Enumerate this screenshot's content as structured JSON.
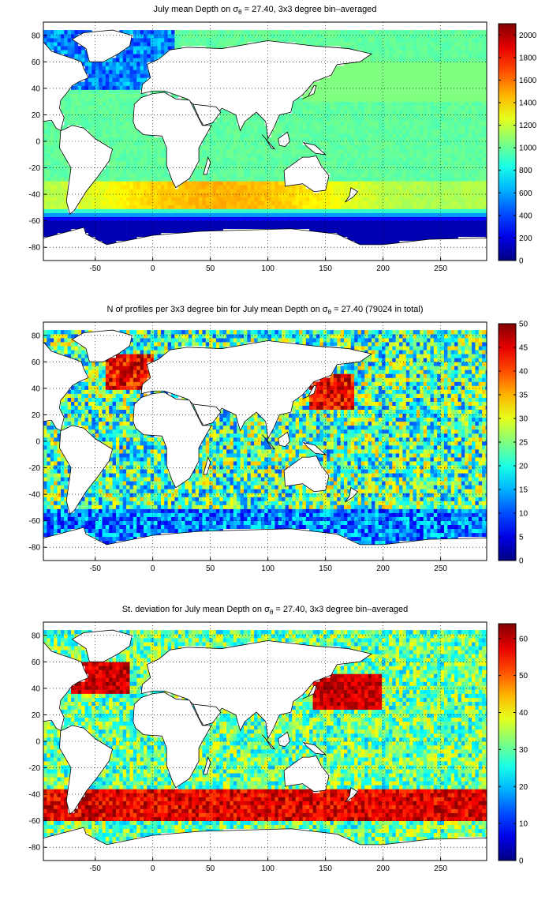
{
  "colors": {
    "land": "#ffffff",
    "coast": "#000000",
    "grid": "#000000",
    "colormap": "jet"
  },
  "panels": [
    {
      "title_prefix": "July mean Depth on ",
      "title_symbol": "σ",
      "title_subscript": "θ",
      "title_suffix": " = 27.40, 3x3 degree bin–averaged",
      "chart_data": {
        "type": "heatmap",
        "xticks": [
          "-50",
          "0",
          "50",
          "100",
          "150",
          "200",
          "250"
        ],
        "yticks": [
          "80",
          "60",
          "40",
          "20",
          "0",
          "-20",
          "-40",
          "-60",
          "-80"
        ],
        "colorbar_ticks": [
          "2000",
          "1800",
          "1600",
          "1400",
          "1200",
          "1000",
          "800",
          "600",
          "400",
          "200",
          "0"
        ],
        "colorbar_range": [
          0,
          2100
        ],
        "xlim": [
          -95,
          290
        ],
        "ylim": [
          -90,
          90
        ],
        "grid": true
      }
    },
    {
      "title_prefix": "N of profiles per 3x3 degree bin for July mean Depth on ",
      "title_symbol": "σ",
      "title_subscript": "θ",
      "title_suffix": " = 27.40 (79024 in total)",
      "chart_data": {
        "type": "heatmap",
        "xticks": [
          "-50",
          "0",
          "50",
          "100",
          "150",
          "200",
          "250"
        ],
        "yticks": [
          "80",
          "60",
          "40",
          "20",
          "0",
          "-20",
          "-40",
          "-60",
          "-80"
        ],
        "colorbar_ticks": [
          "50",
          "45",
          "40",
          "35",
          "30",
          "25",
          "20",
          "15",
          "10",
          "5",
          "0"
        ],
        "colorbar_range": [
          0,
          50
        ],
        "xlim": [
          -95,
          290
        ],
        "ylim": [
          -90,
          90
        ],
        "grid": true
      }
    },
    {
      "title_prefix": "St. deviation for July mean Depth on ",
      "title_symbol": "σ",
      "title_subscript": "θ",
      "title_suffix": " = 27.40, 3x3 degree bin–averaged",
      "chart_data": {
        "type": "heatmap",
        "xticks": [
          "-50",
          "0",
          "50",
          "100",
          "150",
          "200",
          "250"
        ],
        "yticks": [
          "80",
          "60",
          "40",
          "20",
          "0",
          "-20",
          "-40",
          "-60",
          "-80"
        ],
        "colorbar_ticks": [
          "60",
          "50",
          "40",
          "30",
          "20",
          "10",
          "0"
        ],
        "colorbar_range": [
          0,
          64
        ],
        "xlim": [
          -95,
          290
        ],
        "ylim": [
          -90,
          90
        ],
        "grid": true
      }
    }
  ]
}
